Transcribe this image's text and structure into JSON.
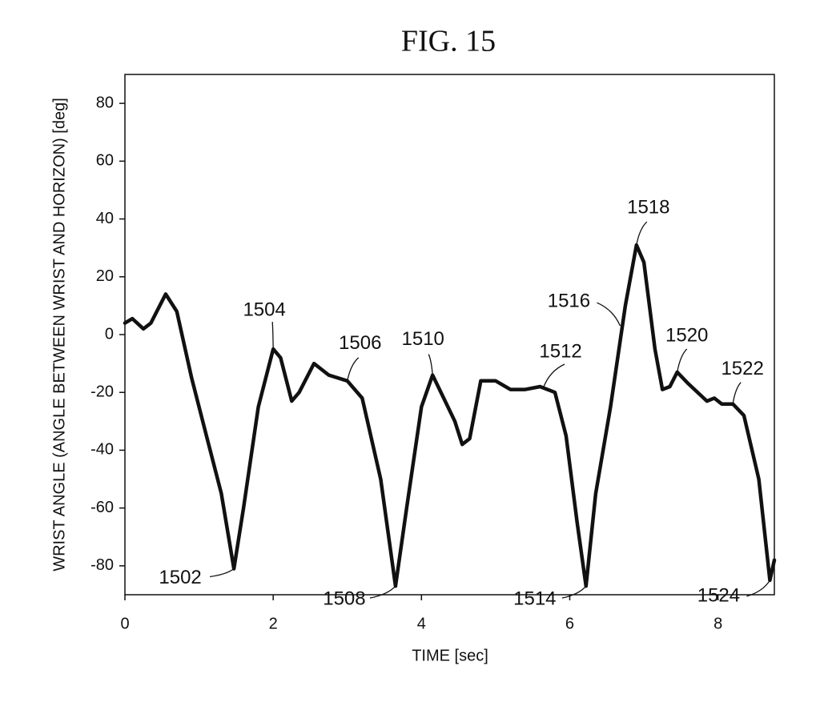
{
  "chart_data": {
    "type": "line",
    "title": "FIG. 15",
    "xlabel": "TIME [sec]",
    "ylabel": "WRIST ANGLE (ANGLE BETWEEN WRIST AND HORIZON) [deg]",
    "x": [
      0,
      0.1,
      0.25,
      0.35,
      0.55,
      0.7,
      0.9,
      1.1,
      1.3,
      1.47,
      1.6,
      1.8,
      2.0,
      2.1,
      2.25,
      2.35,
      2.55,
      2.75,
      3.0,
      3.2,
      3.45,
      3.65,
      3.8,
      4.0,
      4.15,
      4.3,
      4.45,
      4.55,
      4.65,
      4.8,
      5.0,
      5.2,
      5.4,
      5.6,
      5.8,
      5.95,
      6.1,
      6.22,
      6.35,
      6.55,
      6.75,
      6.9,
      7.0,
      7.15,
      7.25,
      7.35,
      7.45,
      7.6,
      7.85,
      7.95,
      8.05,
      8.2,
      8.35,
      8.55,
      8.7,
      8.76
    ],
    "values": [
      4,
      5.5,
      2,
      4,
      14,
      8,
      -15,
      -35,
      -55,
      -81,
      -60,
      -25,
      -5,
      -8,
      -23,
      -20,
      -10,
      -14,
      -16,
      -22,
      -50,
      -87,
      -60,
      -25,
      -14,
      -22,
      -30,
      -38,
      -36,
      -16,
      -16,
      -19,
      -19,
      -18,
      -20,
      -35,
      -65,
      -87,
      -55,
      -25,
      10,
      31,
      25,
      -5,
      -19,
      -18,
      -13,
      -17,
      -23,
      -22,
      -24,
      -24,
      -28,
      -50,
      -85,
      -78
    ],
    "color": "#111111",
    "xlim": [
      0,
      8.76
    ],
    "xticks": [
      0,
      2,
      4,
      6,
      8
    ],
    "ylim": [
      -90,
      90
    ],
    "yticks": [
      -80,
      -60,
      -40,
      -20,
      0,
      20,
      40,
      60,
      80
    ],
    "annotations": [
      {
        "text": "1502",
        "x": 1.47,
        "y": -81
      },
      {
        "text": "1504",
        "x": 2.0,
        "y": -5
      },
      {
        "text": "1506",
        "x": 3.0,
        "y": -16
      },
      {
        "text": "1508",
        "x": 3.65,
        "y": -87
      },
      {
        "text": "1510",
        "x": 4.15,
        "y": -14
      },
      {
        "text": "1512",
        "x": 5.65,
        "y": -18
      },
      {
        "text": "1514",
        "x": 6.22,
        "y": -87
      },
      {
        "text": "1516",
        "x": 6.68,
        "y": 3
      },
      {
        "text": "1518",
        "x": 6.9,
        "y": 31
      },
      {
        "text": "1520",
        "x": 7.45,
        "y": -13
      },
      {
        "text": "1522",
        "x": 8.2,
        "y": -24
      },
      {
        "text": "1524",
        "x": 8.7,
        "y": -85
      }
    ]
  }
}
